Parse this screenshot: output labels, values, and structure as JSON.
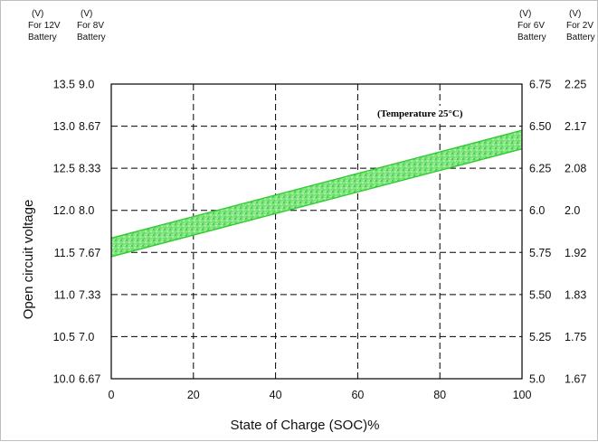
{
  "chart_data": {
    "type": "area",
    "title": "",
    "xlabel": "State of Charge (SOC)%",
    "ylabel": "Open circuit voltage",
    "xlim": [
      0,
      100
    ],
    "ylim": [
      10.0,
      13.5
    ],
    "grid": true,
    "grid_style": "dashed",
    "x_ticks": [
      "0",
      "20",
      "40",
      "60",
      "80",
      "100"
    ],
    "x_tick_values": [
      0,
      20,
      40,
      60,
      80,
      100
    ],
    "y_tick_values": [
      10.0,
      10.5,
      11.0,
      11.5,
      12.0,
      12.5,
      13.0,
      13.5
    ],
    "axis_headers": {
      "left_12v": [
        "(V)",
        "For 12V",
        "Battery"
      ],
      "left_8v": [
        "(V)",
        "For 8V",
        "Battery"
      ],
      "right_6v": [
        "(V)",
        "For 6V",
        "Battery"
      ],
      "right_2v": [
        "(V)",
        "For 2V",
        "Battery"
      ]
    },
    "y_ticks_12v": [
      "10.0",
      "10.5",
      "11.0",
      "11.5",
      "12.0",
      "12.5",
      "13.0",
      "13.5"
    ],
    "y_ticks_8v": [
      "6.67",
      "7.0",
      "7.33",
      "7.67",
      "8.0",
      "8.33",
      "8.67",
      "9.0"
    ],
    "y_ticks_6v": [
      "5.0",
      "5.25",
      "5.50",
      "5.75",
      "6.0",
      "6.25",
      "6.50",
      "6.75"
    ],
    "y_ticks_2v": [
      "1.67",
      "1.75",
      "1.83",
      "1.92",
      "2.0",
      "2.08",
      "2.17",
      "2.25"
    ],
    "annotation": "(Temperature 25°C)",
    "series": [
      {
        "name": "",
        "x": [
          0,
          100
        ],
        "upper": [
          11.67,
          12.95
        ],
        "lower": [
          11.45,
          12.73
        ],
        "color": "#2ecc2e"
      }
    ]
  }
}
